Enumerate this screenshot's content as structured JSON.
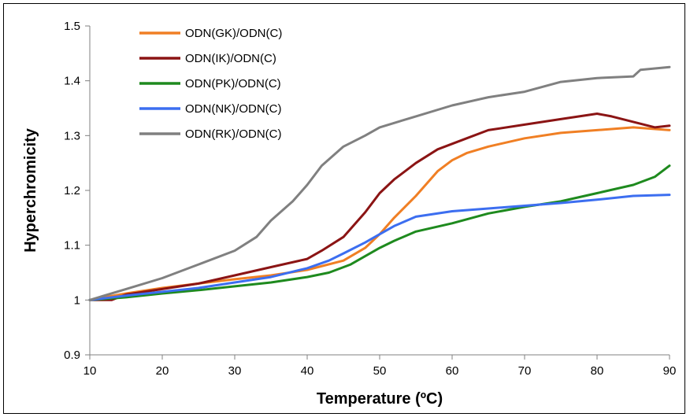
{
  "chart_data": {
    "type": "line",
    "title": "",
    "xlabel": "Temperature (ºC)",
    "ylabel": "Hyperchromicity",
    "xlim": [
      10,
      90
    ],
    "ylim": [
      0.9,
      1.5
    ],
    "xticks": [
      10,
      20,
      30,
      40,
      50,
      60,
      70,
      80,
      90
    ],
    "yticks": [
      0.9,
      1,
      1.1,
      1.2,
      1.3,
      1.4,
      1.5
    ],
    "xtick_labels": [
      "10",
      "20",
      "30",
      "40",
      "50",
      "60",
      "70",
      "80",
      "90"
    ],
    "ytick_labels": [
      "0.9",
      "1",
      "1.1",
      "1.2",
      "1.3",
      "1.4",
      "1.5"
    ],
    "grid": false,
    "legend_position": "top-left",
    "series": [
      {
        "name": "ODN(GK)/ODN(C)",
        "color": "#F07F24",
        "x": [
          10,
          15,
          20,
          25,
          30,
          35,
          40,
          45,
          48,
          50,
          52,
          55,
          58,
          60,
          62,
          65,
          70,
          75,
          80,
          85,
          90
        ],
        "y": [
          1.0,
          1.012,
          1.022,
          1.03,
          1.038,
          1.045,
          1.055,
          1.072,
          1.095,
          1.12,
          1.15,
          1.19,
          1.235,
          1.255,
          1.268,
          1.28,
          1.295,
          1.305,
          1.31,
          1.315,
          1.31
        ]
      },
      {
        "name": "ODN(IK)/ODN(C)",
        "color": "#8B1414",
        "x": [
          10,
          13,
          15,
          20,
          25,
          30,
          35,
          40,
          42,
          45,
          48,
          50,
          52,
          55,
          58,
          60,
          62,
          65,
          70,
          75,
          80,
          82,
          85,
          88,
          90
        ],
        "y": [
          1.0,
          1.0,
          1.01,
          1.02,
          1.03,
          1.045,
          1.06,
          1.075,
          1.09,
          1.115,
          1.16,
          1.195,
          1.22,
          1.25,
          1.275,
          1.285,
          1.295,
          1.31,
          1.32,
          1.33,
          1.34,
          1.335,
          1.325,
          1.315,
          1.318
        ]
      },
      {
        "name": "ODN(PK)/ODN(C)",
        "color": "#1E8A1E",
        "x": [
          10,
          15,
          20,
          25,
          30,
          35,
          40,
          43,
          46,
          48,
          50,
          52,
          55,
          60,
          65,
          70,
          75,
          80,
          85,
          88,
          90
        ],
        "y": [
          1.0,
          1.005,
          1.012,
          1.018,
          1.025,
          1.032,
          1.042,
          1.05,
          1.065,
          1.08,
          1.095,
          1.108,
          1.125,
          1.14,
          1.158,
          1.17,
          1.18,
          1.195,
          1.21,
          1.225,
          1.245
        ]
      },
      {
        "name": "ODN(NK)/ODN(C)",
        "color": "#3C6EF0",
        "x": [
          10,
          15,
          20,
          25,
          30,
          35,
          40,
          43,
          45,
          48,
          50,
          52,
          55,
          60,
          65,
          70,
          75,
          80,
          85,
          90
        ],
        "y": [
          1.0,
          1.008,
          1.015,
          1.022,
          1.032,
          1.042,
          1.058,
          1.072,
          1.085,
          1.105,
          1.12,
          1.135,
          1.152,
          1.162,
          1.167,
          1.172,
          1.177,
          1.183,
          1.19,
          1.192
        ]
      },
      {
        "name": "ODN(RK)/ODN(C)",
        "color": "#808080",
        "x": [
          10,
          15,
          20,
          25,
          30,
          33,
          35,
          38,
          40,
          42,
          45,
          48,
          50,
          55,
          60,
          65,
          70,
          75,
          80,
          85,
          86,
          90
        ],
        "y": [
          1.0,
          1.02,
          1.04,
          1.065,
          1.09,
          1.115,
          1.145,
          1.18,
          1.21,
          1.245,
          1.28,
          1.3,
          1.315,
          1.335,
          1.355,
          1.37,
          1.38,
          1.398,
          1.405,
          1.408,
          1.42,
          1.425
        ]
      }
    ]
  }
}
